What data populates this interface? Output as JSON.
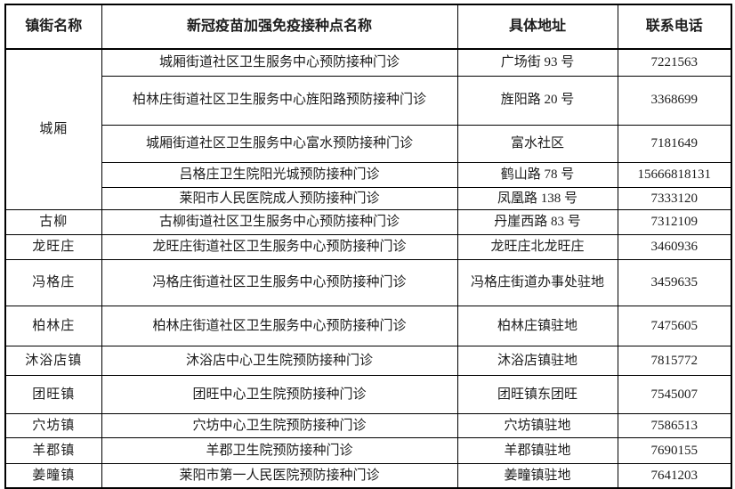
{
  "table": {
    "headers": {
      "town": "镇街名称",
      "site": "新冠疫苗加强免疫接种点名称",
      "address": "具体地址",
      "phone": "联系电话"
    },
    "groups": [
      {
        "town": "城厢",
        "rows": [
          {
            "site": "城厢街道社区卫生服务中心预防接种门诊",
            "address": "广场街 93 号",
            "phone": "7221563"
          },
          {
            "site": "柏林庄街道社区卫生服务中心旌阳路预防接种门诊",
            "address": "旌阳路 20 号",
            "phone": "3368699"
          },
          {
            "site": "城厢街道社区卫生服务中心富水预防接种门诊",
            "address": "富水社区",
            "phone": "7181649"
          },
          {
            "site": "吕格庄卫生院阳光城预防接种门诊",
            "address": "鹤山路 78 号",
            "phone": "15666818131"
          },
          {
            "site": "莱阳市人民医院成人预防接种门诊",
            "address": "凤凰路 138 号",
            "phone": "7333120"
          }
        ]
      },
      {
        "town": "古柳",
        "rows": [
          {
            "site": "古柳街道社区卫生服务中心预防接种门诊",
            "address": "丹崖西路 83 号",
            "phone": "7312109"
          }
        ]
      },
      {
        "town": "龙旺庄",
        "rows": [
          {
            "site": "龙旺庄街道社区卫生服务中心预防接种门诊",
            "address": "龙旺庄北龙旺庄",
            "phone": "3460936"
          }
        ]
      },
      {
        "town": "冯格庄",
        "rows": [
          {
            "site": "冯格庄街道社区卫生服务中心预防接种门诊",
            "address": "冯格庄街道办事处驻地",
            "phone": "3459635"
          }
        ]
      },
      {
        "town": "柏林庄",
        "rows": [
          {
            "site": "柏林庄街道社区卫生服务中心预防接种门诊",
            "address": "柏林庄镇驻地",
            "phone": "7475605"
          }
        ]
      },
      {
        "town": "沐浴店镇",
        "rows": [
          {
            "site": "沐浴店中心卫生院预防接种门诊",
            "address": "沐浴店镇驻地",
            "phone": "7815772"
          }
        ]
      },
      {
        "town": "团旺镇",
        "rows": [
          {
            "site": "团旺中心卫生院预防接种门诊",
            "address": "团旺镇东团旺",
            "phone": "7545007"
          }
        ]
      },
      {
        "town": "穴坊镇",
        "rows": [
          {
            "site": "穴坊中心卫生院预防接种门诊",
            "address": "穴坊镇驻地",
            "phone": "7586513"
          }
        ]
      },
      {
        "town": "羊郡镇",
        "rows": [
          {
            "site": "羊郡卫生院预防接种门诊",
            "address": "羊郡镇驻地",
            "phone": "7690155"
          }
        ]
      },
      {
        "town": "姜疃镇",
        "rows": [
          {
            "site": "莱阳市第一人民医院预防接种门诊",
            "address": "姜疃镇驻地",
            "phone": "7641203"
          }
        ]
      }
    ]
  }
}
